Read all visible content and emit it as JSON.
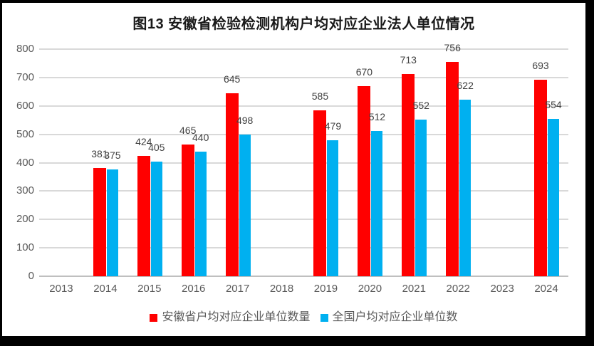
{
  "window": {
    "frame_background": "#000000",
    "canvas_background": "#ffffff"
  },
  "colors": {
    "series_anhui": "#ff0000",
    "series_national": "#00b0f0",
    "gridline": "#d9d9d9",
    "axis_line": "#bfbfbf",
    "tick_label": "#595959",
    "data_label": "#404040",
    "title": "#1a1a1a",
    "legend_text": "#595959"
  },
  "chart_data": {
    "type": "bar",
    "title": "图13  安徽省检验检测机构户均对应企业法人单位情况",
    "categories": [
      "2013",
      "2014",
      "2015",
      "2016",
      "2017",
      "2018",
      "2019",
      "2020",
      "2021",
      "2022",
      "2023",
      "2024"
    ],
    "series": [
      {
        "name": "安徽省户均对应企业单位数量",
        "color": "#ff0000",
        "values": [
          null,
          381,
          424,
          465,
          645,
          null,
          585,
          670,
          713,
          756,
          null,
          693
        ]
      },
      {
        "name": "全国户均对应企业单位数",
        "color": "#00b0f0",
        "values": [
          null,
          375,
          405,
          440,
          498,
          null,
          479,
          512,
          552,
          622,
          null,
          554
        ]
      }
    ],
    "xlabel": "",
    "ylabel": "",
    "ylim": [
      0,
      800
    ],
    "yticks": [
      0,
      100,
      200,
      300,
      400,
      500,
      600,
      700,
      800
    ],
    "grid": true,
    "data_labels": true,
    "legend_position": "bottom"
  }
}
